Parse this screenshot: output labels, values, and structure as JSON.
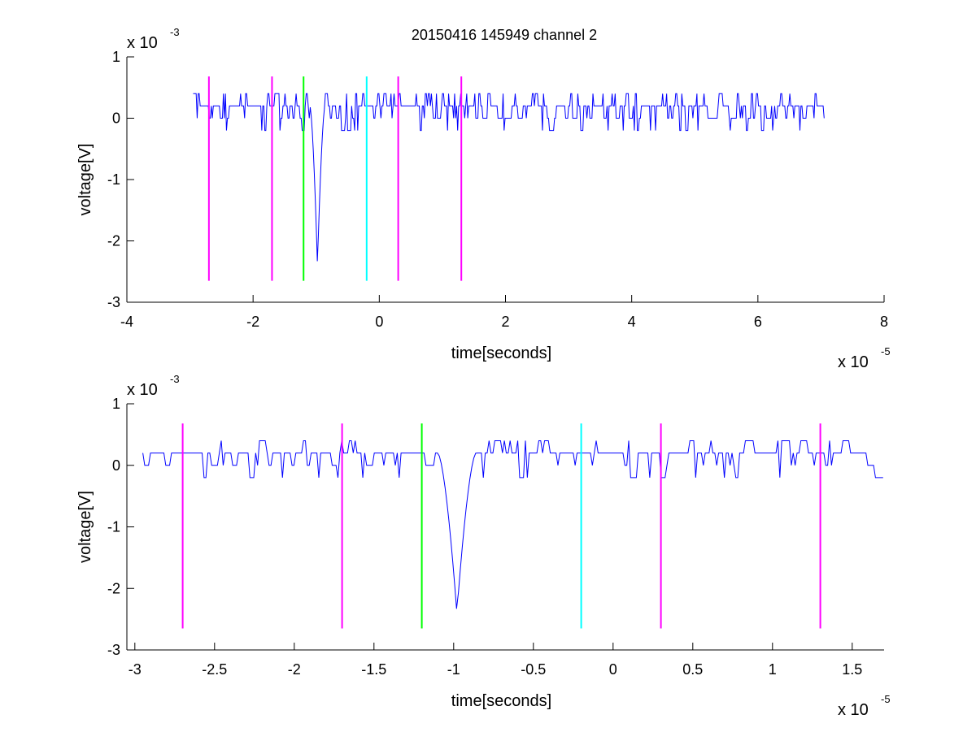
{
  "title": "20150416 145949 channel 2",
  "colors": {
    "trace": "#0000ff",
    "magenta": "#ff00ff",
    "green": "#00ff00",
    "cyan": "#00ffff",
    "axis": "#000000"
  },
  "chart_data": [
    {
      "type": "line",
      "title": "20150416 145949 channel 2",
      "xlabel": "time[seconds]",
      "ylabel": "voltage[V]",
      "x_exponent_label": "x 10",
      "x_exponent_power": "-5",
      "y_exponent_label": "x 10",
      "y_exponent_power": "-3",
      "xlim": [
        -4,
        8
      ],
      "ylim": [
        -3,
        1
      ],
      "x_ticks": [
        -4,
        -2,
        0,
        2,
        4,
        6,
        8
      ],
      "x_tick_labels": [
        "-4",
        "-2",
        "0",
        "2",
        "4",
        "6",
        "8"
      ],
      "y_ticks": [
        -3,
        -2,
        -1,
        0,
        1
      ],
      "y_tick_labels": [
        "-3",
        "-2",
        "-1",
        "0",
        "1"
      ],
      "grid": false,
      "trace_range": [
        -2.95,
        7.05
      ],
      "spike": {
        "t": -0.98,
        "min": -2.4
      },
      "markers": [
        {
          "x": -2.7,
          "color": "magenta",
          "ymin": -2.65,
          "ymax": 0.68
        },
        {
          "x": -1.7,
          "color": "magenta",
          "ymin": -2.65,
          "ymax": 0.68
        },
        {
          "x": -1.2,
          "color": "green",
          "ymin": -2.65,
          "ymax": 0.68
        },
        {
          "x": -0.2,
          "color": "cyan",
          "ymin": -2.65,
          "ymax": 0.68
        },
        {
          "x": 0.3,
          "color": "magenta",
          "ymin": -2.65,
          "ymax": 0.68
        },
        {
          "x": 1.3,
          "color": "magenta",
          "ymin": -2.65,
          "ymax": 0.68
        }
      ]
    },
    {
      "type": "line",
      "title": "",
      "xlabel": "time[seconds]",
      "ylabel": "voltage[V]",
      "x_exponent_label": "x 10",
      "x_exponent_power": "-5",
      "y_exponent_label": "x 10",
      "y_exponent_power": "-3",
      "xlim": [
        -3.05,
        1.7
      ],
      "ylim": [
        -3,
        1
      ],
      "x_ticks": [
        -3,
        -2.5,
        -2,
        -1.5,
        -1,
        -0.5,
        0,
        0.5,
        1,
        1.5
      ],
      "x_tick_labels": [
        "-3",
        "-2.5",
        "-2",
        "-1.5",
        "-1",
        "-0.5",
        "0",
        "0.5",
        "1",
        "1.5"
      ],
      "y_ticks": [
        -3,
        -2,
        -1,
        0,
        1
      ],
      "y_tick_labels": [
        "-3",
        "-2",
        "-1",
        "0",
        "1"
      ],
      "grid": false,
      "trace_range": [
        -2.95,
        1.7
      ],
      "spike": {
        "t": -0.98,
        "min": -2.4
      },
      "markers": [
        {
          "x": -2.7,
          "color": "magenta",
          "ymin": -2.65,
          "ymax": 0.68
        },
        {
          "x": -1.7,
          "color": "magenta",
          "ymin": -2.65,
          "ymax": 0.68
        },
        {
          "x": -1.2,
          "color": "green",
          "ymin": -2.65,
          "ymax": 0.68
        },
        {
          "x": -0.2,
          "color": "cyan",
          "ymin": -2.65,
          "ymax": 0.68
        },
        {
          "x": 0.3,
          "color": "magenta",
          "ymin": -2.65,
          "ymax": 0.68
        },
        {
          "x": 1.3,
          "color": "magenta",
          "ymin": -2.65,
          "ymax": 0.68
        }
      ]
    }
  ]
}
